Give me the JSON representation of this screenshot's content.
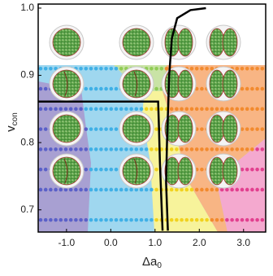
{
  "chart_data": {
    "type": "phase",
    "x_label": "Δa",
    "x_label_subscript": "0",
    "y_label": "v",
    "y_label_subscript": "con",
    "xlim": [
      -1.64,
      3.5
    ],
    "ylim": [
      0.667,
      1.006
    ],
    "xticks": [
      {
        "value": -1,
        "label": "-1.0"
      },
      {
        "value": 0,
        "label": "0.0"
      },
      {
        "value": 1,
        "label": "1.0"
      },
      {
        "value": 2,
        "label": "2.0"
      },
      {
        "value": 3,
        "label": "3.0"
      }
    ],
    "yticks": [
      0.7,
      0.8,
      0.9,
      {
        "value": 1,
        "label": "1.0"
      }
    ],
    "sample_rows": [
      0.91,
      0.88,
      0.85,
      0.82,
      0.79,
      0.76,
      0.73,
      0.685
    ],
    "series": [
      {
        "color": "#000000",
        "x": [
          -1.64,
          1.07,
          1.09,
          1.11,
          1.17
        ],
        "y": [
          0.861,
          0.861,
          0.82,
          0.771,
          0.669
        ]
      },
      {
        "color": "#000000",
        "x": [
          1.29,
          1.25,
          1.27,
          1.32,
          1.38,
          1.5,
          1.8,
          2.15
        ],
        "y": [
          0.669,
          0.74,
          0.8,
          0.9,
          0.955,
          0.985,
          0.997,
          1.0
        ]
      }
    ]
  }
}
